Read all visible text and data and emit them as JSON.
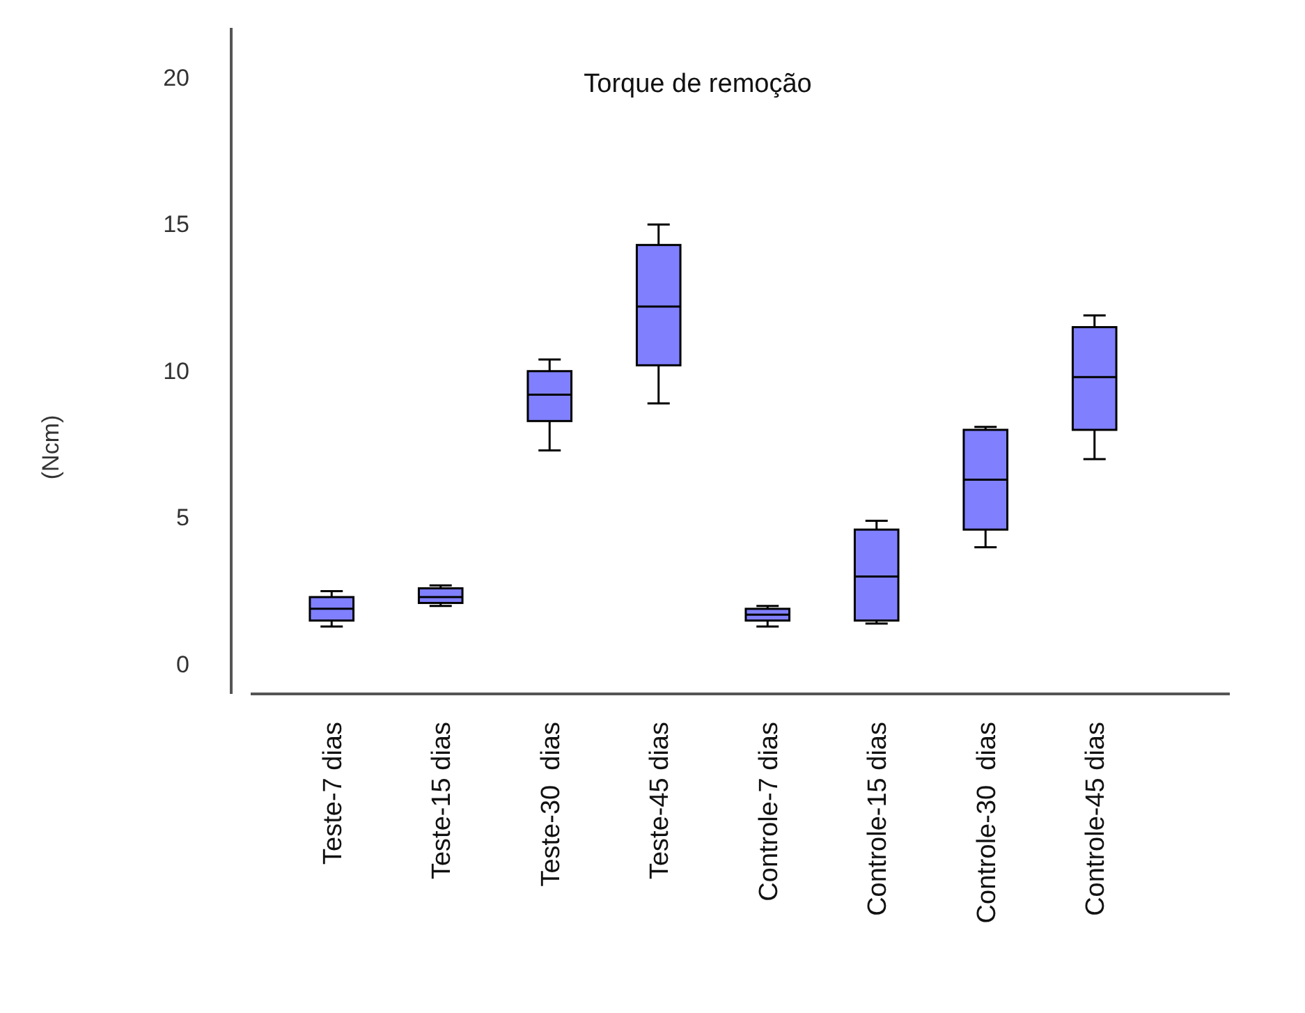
{
  "chart_data": {
    "type": "box",
    "title": "Torque de remoção",
    "ylabel": "(Ncm)",
    "categories": [
      "Teste-7 dias",
      "Teste-15 dias",
      "Teste-30  dias",
      "Teste-45 dias",
      "Controle-7 dias",
      "Controle-15 dias",
      "Controle-30  dias",
      "Controle-45 dias"
    ],
    "color": "#8080ff",
    "ylim": [
      -1,
      21.7
    ],
    "yticks": [
      0,
      5,
      10,
      15,
      20
    ],
    "grid": false,
    "boxes": [
      {
        "low": 1.3,
        "q1": 1.5,
        "median": 1.9,
        "q3": 2.3,
        "high": 2.5
      },
      {
        "low": 2.0,
        "q1": 2.1,
        "median": 2.3,
        "q3": 2.6,
        "high": 2.7
      },
      {
        "low": 7.3,
        "q1": 8.3,
        "median": 9.2,
        "q3": 10.0,
        "high": 10.4
      },
      {
        "low": 8.9,
        "q1": 10.2,
        "median": 12.2,
        "q3": 14.3,
        "high": 15.0
      },
      {
        "low": 1.3,
        "q1": 1.5,
        "median": 1.7,
        "q3": 1.9,
        "high": 2.0
      },
      {
        "low": 1.4,
        "q1": 1.5,
        "median": 3.0,
        "q3": 4.6,
        "high": 4.9
      },
      {
        "low": 4.0,
        "q1": 4.6,
        "median": 6.3,
        "q3": 8.0,
        "high": 8.1
      },
      {
        "low": 7.0,
        "q1": 8.0,
        "median": 9.8,
        "q3": 11.5,
        "high": 11.9
      }
    ]
  }
}
